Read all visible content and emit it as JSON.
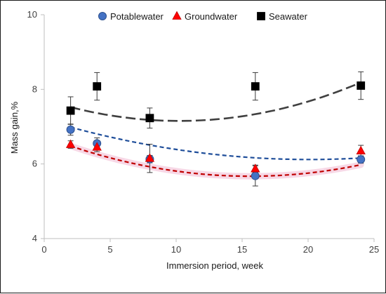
{
  "chart_data": {
    "type": "scatter",
    "xlabel": "Immersion period, week",
    "ylabel": "Mass gain,%",
    "xlim": [
      0,
      25
    ],
    "ylim": [
      4,
      10
    ],
    "x_ticks": [
      0,
      5,
      10,
      15,
      20,
      25
    ],
    "y_ticks": [
      4,
      6,
      8,
      10
    ],
    "grid": false,
    "legend_position": "top",
    "series": [
      {
        "name": "Potablewater",
        "marker": "circle",
        "color": "#4472c4",
        "trend_color": "#1f4e9a",
        "x": [
          2,
          4,
          8,
          16,
          24
        ],
        "y": [
          6.92,
          6.55,
          6.13,
          5.68,
          6.12
        ],
        "err": [
          0.15,
          0.15,
          0.1,
          0.27,
          0.1
        ],
        "trend": {
          "type": "polynomial-2",
          "coef": [
            7.1875,
            -0.1062,
            0.00264
          ]
        }
      },
      {
        "name": "Groundwater",
        "marker": "triangle",
        "color": "#ff0000",
        "trend_color": "#c00000",
        "band_color": "#f4c7dc",
        "x": [
          2,
          4,
          8,
          16,
          24
        ],
        "y": [
          6.52,
          6.45,
          6.15,
          5.87,
          6.35
        ],
        "err": [
          0.1,
          0.12,
          0.38,
          0.1,
          0.15
        ],
        "trend": {
          "type": "polynomial-2",
          "coef": [
            6.7367,
            -0.1365,
            0.00437
          ]
        }
      },
      {
        "name": "Seawater",
        "marker": "square",
        "color": "#000000",
        "trend_color": "#404040",
        "x": [
          2,
          4,
          8,
          16,
          24
        ],
        "y": [
          7.43,
          8.08,
          7.23,
          8.08,
          8.1
        ],
        "err": [
          0.37,
          0.37,
          0.27,
          0.37,
          0.37
        ],
        "trend": {
          "type": "polynomial-2",
          "coef": [
            7.723,
            -0.1113,
            0.00544
          ]
        }
      }
    ]
  }
}
